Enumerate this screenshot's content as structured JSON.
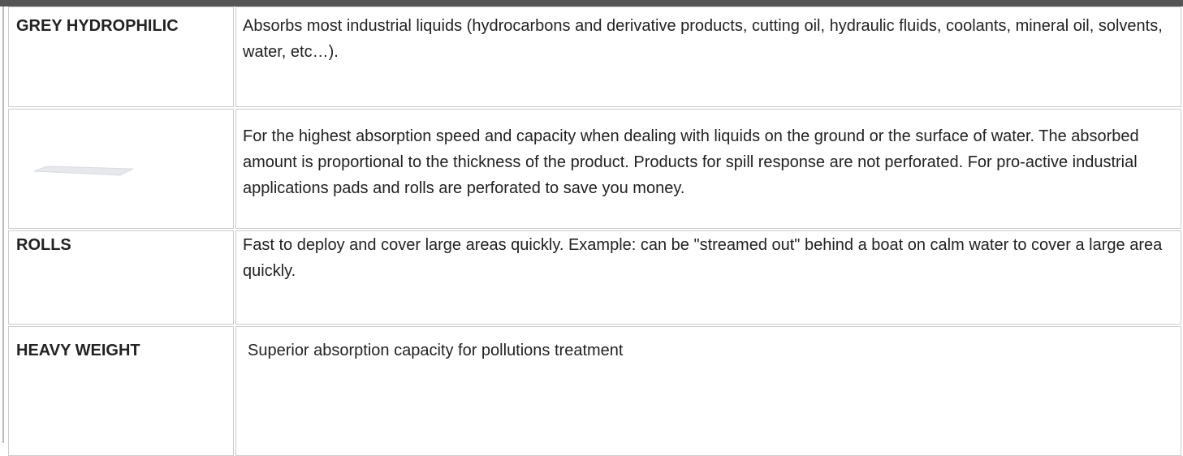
{
  "table": {
    "rows": [
      {
        "label": "GREY HYDROPHILIC",
        "description": "Absorbs most industrial liquids (hydrocarbons and derivative products, cutting oil, hydraulic fluids, coolants, mineral oil, solvents, water, etc…)."
      },
      {
        "description": "For the highest absorption speed and capacity when dealing with liquids on the ground or the surface of water. The absorbed amount is proportional to the thickness of the product. Products for spill response are not perforated. For pro-active industrial applications pads and rolls are perforated to save you money."
      },
      {
        "label": "ROLLS",
        "description": "Fast to deploy and cover large areas quickly. Example: can be \"streamed out\" behind a boat on calm water to cover a large area quickly."
      },
      {
        "label": "HEAVY WEIGHT",
        "description": "Superior absorption capacity for pollutions treatment"
      }
    ]
  }
}
